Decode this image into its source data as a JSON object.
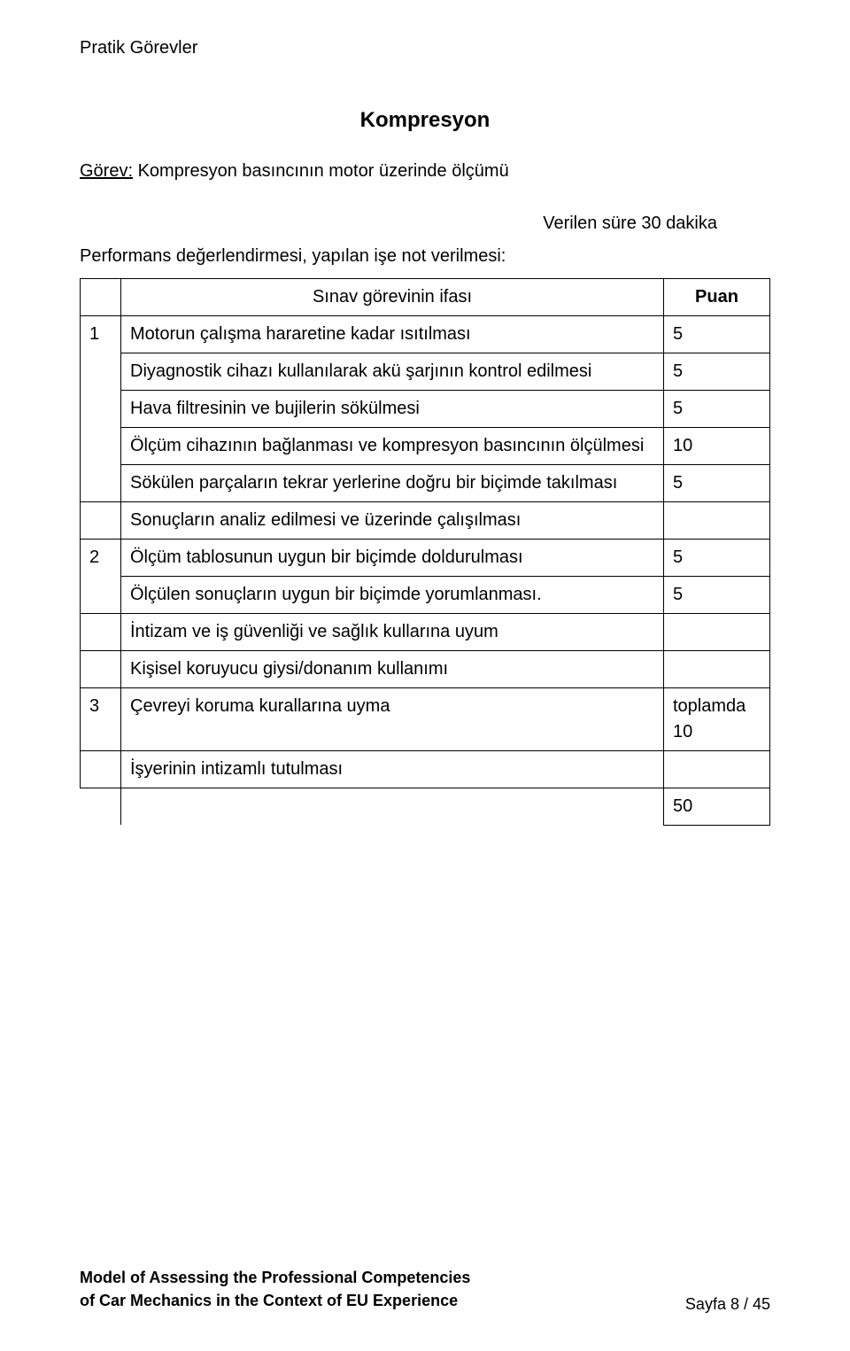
{
  "colors": {
    "background": "#ffffff",
    "text": "#000000",
    "border": "#000000"
  },
  "typography": {
    "family": "Arial",
    "body_size_pt": 15,
    "title_size_pt": 18,
    "footer_size_pt": 13
  },
  "page_header": "Pratik Görevler",
  "title": "Kompresyon",
  "task_label": "Görev:",
  "task_text": "Kompresyon basıncının motor üzerinde ölçümü",
  "time_note": "Verilen süre 30 dakika",
  "performance_line": "Performans değerlendirmesi, yapılan işe not verilmesi:",
  "table": {
    "header_mid": "Sınav görevinin ifası",
    "header_right": "Puan",
    "section1": {
      "index": "1",
      "rows": [
        {
          "text": "Motorun çalışma hararetine kadar ısıtılması",
          "score": "5"
        },
        {
          "text": "Diyagnostik cihazı kullanılarak akü şarjının kontrol edilmesi",
          "score": "5"
        },
        {
          "text": "Hava filtresinin ve bujilerin sökülmesi",
          "score": "5"
        },
        {
          "text": "Ölçüm cihazının bağlanması ve kompresyon basıncının ölçülmesi",
          "score": "10"
        },
        {
          "text": "Sökülen parçaların tekrar yerlerine doğru bir biçimde takılması",
          "score": "5"
        }
      ]
    },
    "section2": {
      "index": "2",
      "subheader": "Sonuçların analiz edilmesi ve üzerinde çalışılması",
      "rows": [
        {
          "text": "Ölçüm tablosunun uygun bir biçimde doldurulması",
          "score": "5"
        },
        {
          "text": "Ölçülen sonuçların uygun bir biçimde yorumlanması.",
          "score": "5"
        }
      ]
    },
    "section3": {
      "index": "3",
      "subheader": "İntizam ve iş güvenliği ve sağlık kullarına uyum",
      "rows": [
        {
          "text": "Kişisel koruyucu giysi/donanım kullanımı",
          "score": ""
        },
        {
          "text": "Çevreyi koruma kurallarına uyma",
          "score": "toplamda 10"
        },
        {
          "text": "İşyerinin intizamlı tutulması",
          "score": ""
        }
      ]
    },
    "total": "50"
  },
  "footer": {
    "line1": "Model of Assessing the Professional Competencies",
    "line2": "of Car Mechanics in the Context of EU Experience",
    "page": "Sayfa 8 / 45"
  }
}
